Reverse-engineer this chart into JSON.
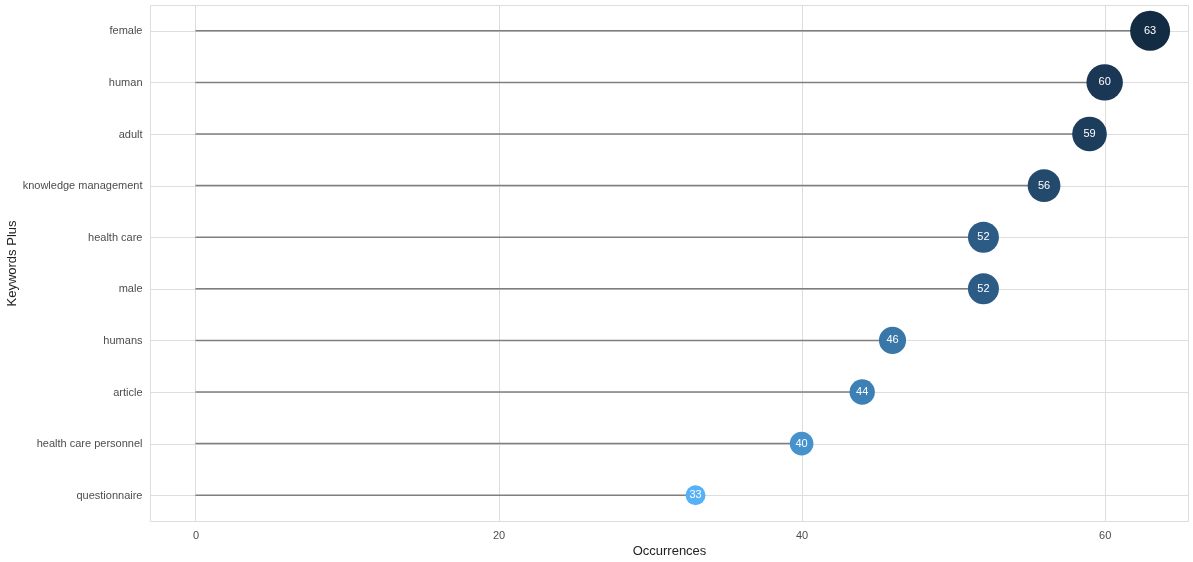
{
  "chart_data": {
    "type": "lollipop",
    "orientation": "horizontal",
    "xlabel": "Occurrences",
    "ylabel": "Keywords Plus",
    "categories": [
      "female",
      "human",
      "adult",
      "knowledge management",
      "health care",
      "male",
      "humans",
      "article",
      "health care personnel",
      "questionnaire"
    ],
    "values": [
      63,
      60,
      59,
      56,
      52,
      52,
      46,
      44,
      40,
      33
    ],
    "colors": [
      "#132b43",
      "#1a3855",
      "#1c3d5b",
      "#234a6d",
      "#2c5c85",
      "#2c5c85",
      "#3977a9",
      "#3d80b5",
      "#4692cd",
      "#56b1f7"
    ],
    "sizes": [
      1,
      0.83,
      0.75,
      0.67,
      0.6,
      0.6,
      0.46,
      0.4,
      0.35,
      0.25
    ],
    "data_labels": true,
    "xlim": [
      -3,
      65.5
    ],
    "xticks": [
      0,
      20,
      40,
      60
    ],
    "grid": true
  }
}
